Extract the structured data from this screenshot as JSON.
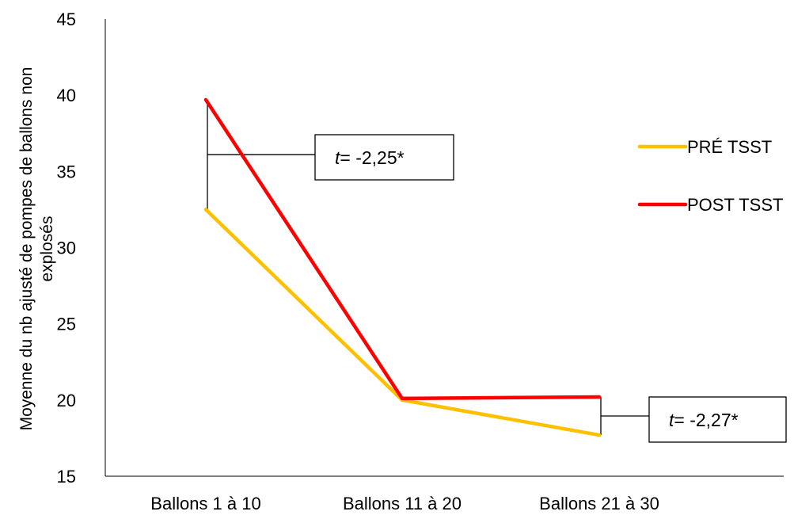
{
  "chart_data": {
    "type": "line",
    "title": "",
    "xlabel": "",
    "ylabel": "Moyenne du nb ajusté de pompes de ballons non explosés",
    "ylabel_lines": [
      "Moyenne du nb ajusté de pompes de ballons non",
      "explosés"
    ],
    "categories": [
      "Ballons 1 à 10",
      "Ballons 11 à 20",
      "Ballons 21 à 30"
    ],
    "ylim": [
      15,
      45
    ],
    "yticks": [
      15,
      20,
      25,
      30,
      35,
      40,
      45
    ],
    "grid": false,
    "legend_position": "right",
    "series": [
      {
        "name": "PRÉ TSST",
        "color": "#FFC000",
        "values": [
          32.5,
          20.0,
          17.7
        ]
      },
      {
        "name": "POST TSST",
        "color": "#FF0000",
        "values": [
          39.7,
          20.1,
          20.2
        ]
      }
    ],
    "annotations": [
      {
        "category_index": 0,
        "t_label": "t",
        "t_value": "= -2,25*"
      },
      {
        "category_index": 2,
        "t_label": "t",
        "t_value": "= -2,27*"
      }
    ]
  }
}
